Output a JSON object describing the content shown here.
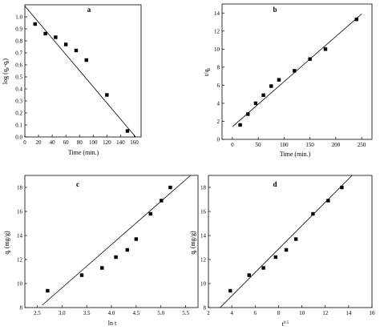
{
  "chart_data": [
    {
      "type": "scatter",
      "title": "a",
      "xlabel": "Time (min.)",
      "ylabel": "log (qe-qt)",
      "xlim": [
        0,
        170
      ],
      "ylim": [
        0.0,
        1.1
      ],
      "xticks": [
        0,
        20,
        40,
        60,
        80,
        100,
        120,
        140,
        160
      ],
      "yticks": [
        0.0,
        0.1,
        0.2,
        0.3,
        0.4,
        0.5,
        0.6,
        0.7,
        0.8,
        0.9,
        1.0
      ],
      "ytick_decimals": 1,
      "points": {
        "x": [
          15,
          30,
          45,
          60,
          75,
          90,
          120,
          150
        ],
        "y": [
          0.94,
          0.86,
          0.83,
          0.77,
          0.72,
          0.64,
          0.35,
          0.05
        ]
      },
      "fit_line": {
        "x": [
          0,
          162
        ],
        "y": [
          1.09,
          0.0
        ]
      }
    },
    {
      "type": "scatter",
      "title": "b",
      "xlabel": "Time (min.)",
      "ylabel": "t/qt",
      "xlim": [
        -20,
        270
      ],
      "ylim": [
        0,
        15
      ],
      "xticks": [
        0,
        50,
        100,
        150,
        200,
        250
      ],
      "yticks": [
        0,
        2,
        4,
        6,
        8,
        10,
        12,
        14
      ],
      "ytick_decimals": 0,
      "points": {
        "x": [
          15,
          30,
          45,
          60,
          75,
          90,
          120,
          150,
          180,
          240
        ],
        "y": [
          1.6,
          2.8,
          4.0,
          4.9,
          5.9,
          6.6,
          7.6,
          8.9,
          10.0,
          13.3
        ]
      },
      "fit_line": {
        "x": [
          0,
          250
        ],
        "y": [
          1.4,
          13.9
        ]
      }
    },
    {
      "type": "scatter",
      "title": "c",
      "xlabel": "ln t",
      "ylabel": "qt (mg/g)",
      "xlim": [
        2.25,
        5.75
      ],
      "ylim": [
        8,
        19
      ],
      "xticks": [
        2.5,
        3.0,
        3.5,
        4.0,
        4.5,
        5.0,
        5.5
      ],
      "yticks": [
        8,
        10,
        12,
        14,
        16,
        18
      ],
      "ytick_decimals": 0,
      "points": {
        "x": [
          2.71,
          3.4,
          3.81,
          4.09,
          4.32,
          4.5,
          4.79,
          5.01,
          5.19
        ],
        "y": [
          9.4,
          10.7,
          11.3,
          12.2,
          12.8,
          13.7,
          15.8,
          16.9,
          18.0
        ]
      },
      "fit_line": {
        "x": [
          2.6,
          5.6
        ],
        "y": [
          8.2,
          19.0
        ]
      }
    },
    {
      "type": "scatter",
      "title": "d",
      "xlabel": "t0.5",
      "ylabel": "qt (mg/g)",
      "xlim": [
        2,
        16
      ],
      "ylim": [
        8,
        19
      ],
      "xticks": [
        2,
        4,
        6,
        8,
        10,
        12,
        14,
        16
      ],
      "yticks": [
        8,
        10,
        12,
        14,
        16,
        18
      ],
      "ytick_decimals": 0,
      "points": {
        "x": [
          3.87,
          5.48,
          6.71,
          7.75,
          8.66,
          9.49,
          10.95,
          12.25,
          13.42
        ],
        "y": [
          9.4,
          10.7,
          11.3,
          12.2,
          12.8,
          13.7,
          15.8,
          16.9,
          18.0
        ]
      },
      "fit_line": {
        "x": [
          3.0,
          14.3
        ],
        "y": [
          8.0,
          19.0
        ]
      }
    }
  ]
}
